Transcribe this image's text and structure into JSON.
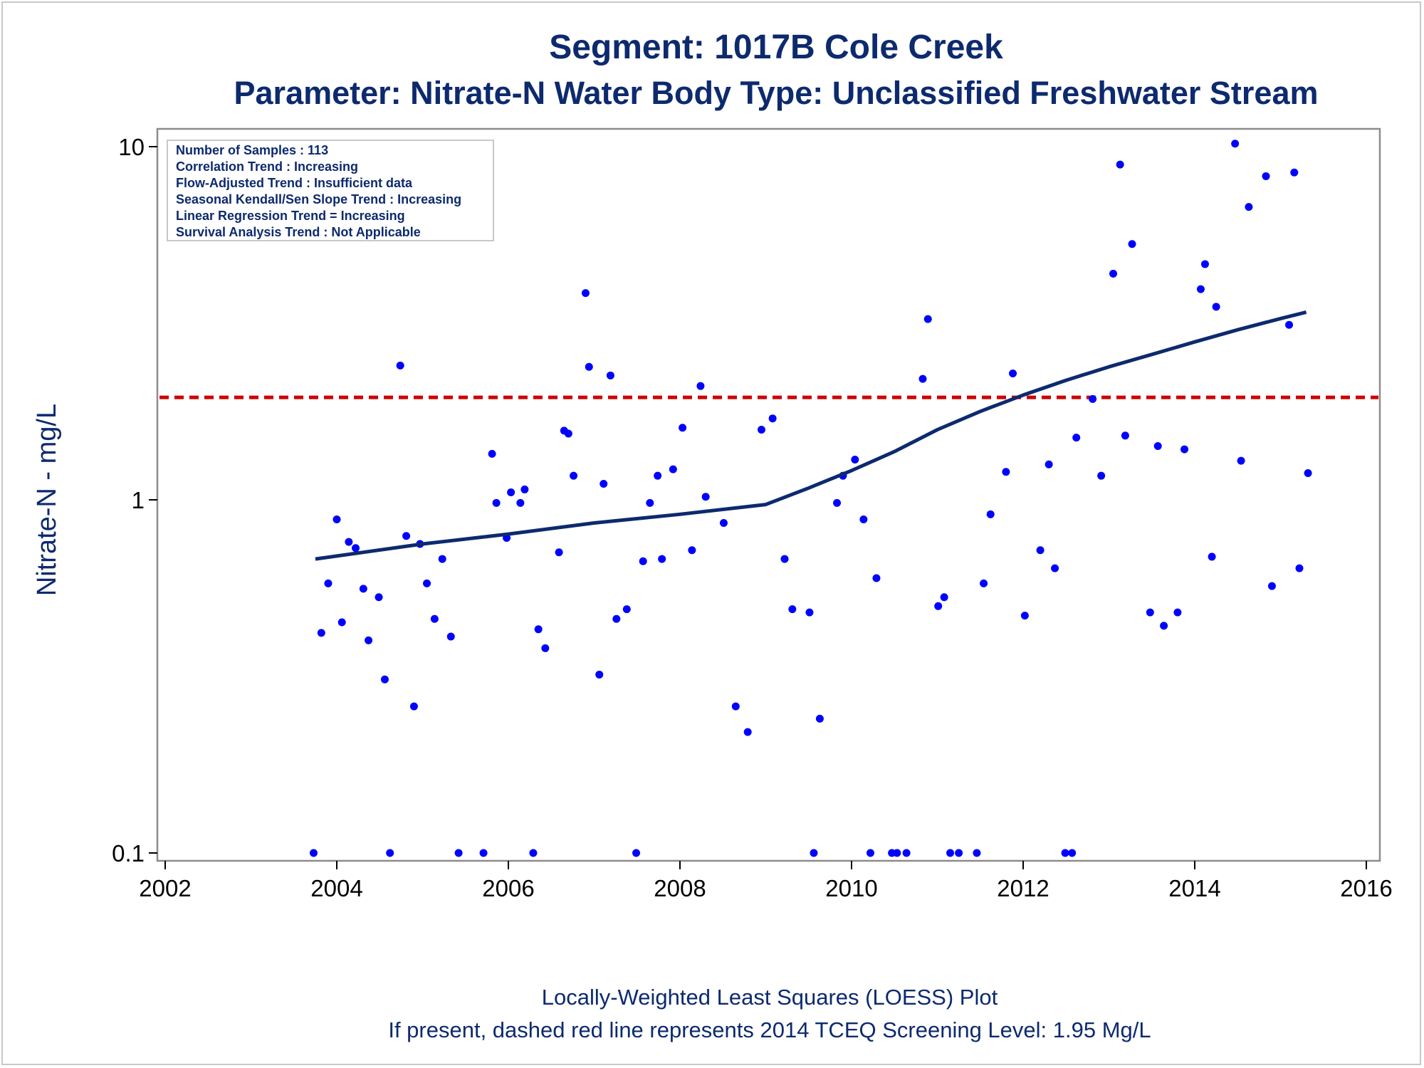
{
  "chart_data": {
    "type": "scatter",
    "title": "Segment: 1017B  Cole Creek",
    "subtitle": "Parameter: Nitrate-N   Water Body Type: Unclassified Freshwater Stream",
    "xlabel": "",
    "ylabel": "Nitrate-N - mg/L",
    "y_scale": "log",
    "xlim": [
      2002,
      2016
    ],
    "ylim": [
      0.1,
      10
    ],
    "x_ticks": [
      "2002",
      "2004",
      "2006",
      "2008",
      "2010",
      "2012",
      "2014",
      "2016"
    ],
    "y_ticks": [
      "0.1",
      "1",
      "10"
    ],
    "grid": false,
    "colors": {
      "points": "#0000ff",
      "loess": "#0d2a6e",
      "screening": "#cc0000",
      "text": "#0d2a6e"
    },
    "stats_box": [
      "Number of Samples : 113",
      "Correlation Trend : Increasing",
      "Flow-Adjusted Trend : Insufficient data",
      "Seasonal Kendall/Sen Slope Trend : Increasing",
      "Linear Regression Trend = Increasing",
      "Survival Analysis Trend : Not Applicable"
    ],
    "footnotes": [
      "Locally-Weighted Least Squares (LOESS) Plot",
      "If present, dashed red line represents 2014 TCEQ Screening Level: 1.95 Mg/L"
    ],
    "screening_level": 1.95,
    "loess": [
      {
        "x": 2003.75,
        "y": 0.68
      },
      {
        "x": 2005.0,
        "y": 0.75
      },
      {
        "x": 2006.0,
        "y": 0.8
      },
      {
        "x": 2007.0,
        "y": 0.86
      },
      {
        "x": 2008.0,
        "y": 0.91
      },
      {
        "x": 2009.0,
        "y": 0.97
      },
      {
        "x": 2009.5,
        "y": 1.08
      },
      {
        "x": 2010.0,
        "y": 1.21
      },
      {
        "x": 2010.5,
        "y": 1.37
      },
      {
        "x": 2011.0,
        "y": 1.58
      },
      {
        "x": 2011.5,
        "y": 1.78
      },
      {
        "x": 2012.0,
        "y": 1.98
      },
      {
        "x": 2012.5,
        "y": 2.18
      },
      {
        "x": 2013.0,
        "y": 2.38
      },
      {
        "x": 2013.5,
        "y": 2.58
      },
      {
        "x": 2014.0,
        "y": 2.8
      },
      {
        "x": 2014.5,
        "y": 3.03
      },
      {
        "x": 2015.0,
        "y": 3.26
      },
      {
        "x": 2015.3,
        "y": 3.4
      }
    ],
    "points": [
      {
        "x": 2003.73,
        "y": 0.1
      },
      {
        "x": 2003.82,
        "y": 0.42
      },
      {
        "x": 2003.9,
        "y": 0.58
      },
      {
        "x": 2004.0,
        "y": 0.88
      },
      {
        "x": 2004.06,
        "y": 0.45
      },
      {
        "x": 2004.14,
        "y": 0.76
      },
      {
        "x": 2004.22,
        "y": 0.73
      },
      {
        "x": 2004.31,
        "y": 0.56
      },
      {
        "x": 2004.37,
        "y": 0.4
      },
      {
        "x": 2004.49,
        "y": 0.53
      },
      {
        "x": 2004.56,
        "y": 0.31
      },
      {
        "x": 2004.62,
        "y": 0.1
      },
      {
        "x": 2004.74,
        "y": 2.4
      },
      {
        "x": 2004.81,
        "y": 0.79
      },
      {
        "x": 2004.9,
        "y": 0.26
      },
      {
        "x": 2004.97,
        "y": 0.75
      },
      {
        "x": 2005.05,
        "y": 0.58
      },
      {
        "x": 2005.14,
        "y": 0.46
      },
      {
        "x": 2005.23,
        "y": 0.68
      },
      {
        "x": 2005.33,
        "y": 0.41
      },
      {
        "x": 2005.42,
        "y": 0.1
      },
      {
        "x": 2005.71,
        "y": 0.1
      },
      {
        "x": 2005.81,
        "y": 1.35
      },
      {
        "x": 2005.86,
        "y": 0.98
      },
      {
        "x": 2005.98,
        "y": 0.78
      },
      {
        "x": 2006.03,
        "y": 1.05
      },
      {
        "x": 2006.14,
        "y": 0.98
      },
      {
        "x": 2006.19,
        "y": 1.07
      },
      {
        "x": 2006.29,
        "y": 0.1
      },
      {
        "x": 2006.35,
        "y": 0.43
      },
      {
        "x": 2006.43,
        "y": 0.38
      },
      {
        "x": 2006.59,
        "y": 0.71
      },
      {
        "x": 2006.65,
        "y": 1.57
      },
      {
        "x": 2006.7,
        "y": 1.54
      },
      {
        "x": 2006.76,
        "y": 1.17
      },
      {
        "x": 2006.9,
        "y": 3.85
      },
      {
        "x": 2006.94,
        "y": 2.38
      },
      {
        "x": 2007.06,
        "y": 0.32
      },
      {
        "x": 2007.11,
        "y": 1.11
      },
      {
        "x": 2007.19,
        "y": 2.25
      },
      {
        "x": 2007.26,
        "y": 0.46
      },
      {
        "x": 2007.38,
        "y": 0.49
      },
      {
        "x": 2007.49,
        "y": 0.1
      },
      {
        "x": 2007.57,
        "y": 0.67
      },
      {
        "x": 2007.65,
        "y": 0.98
      },
      {
        "x": 2007.74,
        "y": 1.17
      },
      {
        "x": 2007.79,
        "y": 0.68
      },
      {
        "x": 2007.92,
        "y": 1.22
      },
      {
        "x": 2008.03,
        "y": 1.6
      },
      {
        "x": 2008.14,
        "y": 0.72
      },
      {
        "x": 2008.24,
        "y": 2.1
      },
      {
        "x": 2008.3,
        "y": 1.02
      },
      {
        "x": 2008.51,
        "y": 0.86
      },
      {
        "x": 2008.65,
        "y": 0.26
      },
      {
        "x": 2008.79,
        "y": 0.22
      },
      {
        "x": 2008.95,
        "y": 1.58
      },
      {
        "x": 2009.08,
        "y": 1.7
      },
      {
        "x": 2009.22,
        "y": 0.68
      },
      {
        "x": 2009.31,
        "y": 0.49
      },
      {
        "x": 2009.51,
        "y": 0.48
      },
      {
        "x": 2009.56,
        "y": 0.1
      },
      {
        "x": 2009.63,
        "y": 0.24
      },
      {
        "x": 2009.83,
        "y": 0.98
      },
      {
        "x": 2009.9,
        "y": 1.17
      },
      {
        "x": 2010.04,
        "y": 1.3
      },
      {
        "x": 2010.14,
        "y": 0.88
      },
      {
        "x": 2010.22,
        "y": 0.1
      },
      {
        "x": 2010.29,
        "y": 0.6
      },
      {
        "x": 2010.47,
        "y": 0.1
      },
      {
        "x": 2010.53,
        "y": 0.1
      },
      {
        "x": 2010.64,
        "y": 0.1
      },
      {
        "x": 2010.83,
        "y": 2.2
      },
      {
        "x": 2010.89,
        "y": 3.25
      },
      {
        "x": 2011.01,
        "y": 0.5
      },
      {
        "x": 2011.08,
        "y": 0.53
      },
      {
        "x": 2011.15,
        "y": 0.1
      },
      {
        "x": 2011.25,
        "y": 0.1
      },
      {
        "x": 2011.46,
        "y": 0.1
      },
      {
        "x": 2011.54,
        "y": 0.58
      },
      {
        "x": 2011.62,
        "y": 0.91
      },
      {
        "x": 2011.8,
        "y": 1.2
      },
      {
        "x": 2011.88,
        "y": 2.28
      },
      {
        "x": 2012.02,
        "y": 0.47
      },
      {
        "x": 2012.2,
        "y": 0.72
      },
      {
        "x": 2012.3,
        "y": 1.26
      },
      {
        "x": 2012.37,
        "y": 0.64
      },
      {
        "x": 2012.49,
        "y": 0.1
      },
      {
        "x": 2012.57,
        "y": 0.1
      },
      {
        "x": 2012.62,
        "y": 1.5
      },
      {
        "x": 2012.81,
        "y": 1.93
      },
      {
        "x": 2012.91,
        "y": 1.17
      },
      {
        "x": 2013.05,
        "y": 4.37
      },
      {
        "x": 2013.13,
        "y": 8.9
      },
      {
        "x": 2013.19,
        "y": 1.52
      },
      {
        "x": 2013.27,
        "y": 5.3
      },
      {
        "x": 2013.48,
        "y": 0.48
      },
      {
        "x": 2013.57,
        "y": 1.42
      },
      {
        "x": 2013.64,
        "y": 0.44
      },
      {
        "x": 2013.8,
        "y": 0.48
      },
      {
        "x": 2013.88,
        "y": 1.39
      },
      {
        "x": 2014.07,
        "y": 3.95
      },
      {
        "x": 2014.12,
        "y": 4.65
      },
      {
        "x": 2014.2,
        "y": 0.69
      },
      {
        "x": 2014.25,
        "y": 3.52
      },
      {
        "x": 2014.47,
        "y": 10.2
      },
      {
        "x": 2014.54,
        "y": 1.29
      },
      {
        "x": 2014.63,
        "y": 6.75
      },
      {
        "x": 2014.83,
        "y": 8.25
      },
      {
        "x": 2014.9,
        "y": 0.57
      },
      {
        "x": 2015.1,
        "y": 3.13
      },
      {
        "x": 2015.16,
        "y": 8.45
      },
      {
        "x": 2015.22,
        "y": 0.64
      },
      {
        "x": 2015.32,
        "y": 1.19
      }
    ]
  }
}
